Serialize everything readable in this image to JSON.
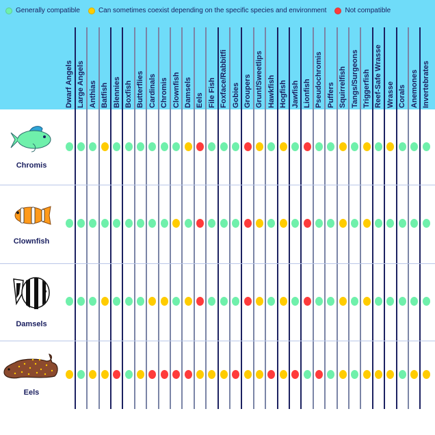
{
  "legend": [
    {
      "label": "Generally compatible",
      "color": "#6ff0ab",
      "key": "G"
    },
    {
      "label": "Can sometimes coexist depending on the specific species and environment",
      "color": "#ffcc00",
      "key": "Y"
    },
    {
      "label": "Not compatible",
      "color": "#ff3b3b",
      "key": "R"
    }
  ],
  "colors": {
    "header_bg": "#6fdcf9",
    "text": "#1b2060",
    "line": "#1b2060",
    "G": "#6ff0ab",
    "Y": "#ffcc00",
    "R": "#ff3b3b"
  },
  "columns": [
    "Dwarf Angels",
    "Large Angels",
    "Anthias",
    "Batfish",
    "Blennies",
    "Boxfish",
    "Butterflies",
    "Cardinals",
    "Chromis",
    "Clownfish",
    "Damsels",
    "Eels",
    "File Fish",
    "Foxface/Rabbitfi",
    "Gobies",
    "Groupers",
    "Grunt/Sweetlips",
    "Hawkfish",
    "Hogfish",
    "Jawfish",
    "Lionfish",
    "Pseudochromis",
    "Puffers",
    "Squirrelfish",
    "Tangs/Surgeons",
    "Triggerfish",
    "Reef-Safe Wrasse",
    "Wrasse",
    "Corals",
    "Anemones",
    "Invertebrates"
  ],
  "rows": [
    {
      "label": "Chromis",
      "icon": "chromis-fish-icon",
      "values": [
        "G",
        "G",
        "G",
        "Y",
        "G",
        "G",
        "G",
        "G",
        "G",
        "G",
        "Y",
        "R",
        "G",
        "G",
        "G",
        "R",
        "Y",
        "G",
        "Y",
        "G",
        "R",
        "G",
        "G",
        "Y",
        "G",
        "Y",
        "G",
        "Y",
        "G",
        "G",
        "G"
      ]
    },
    {
      "label": "Clownfish",
      "icon": "clownfish-icon",
      "values": [
        "G",
        "G",
        "G",
        "G",
        "G",
        "G",
        "G",
        "G",
        "G",
        "Y",
        "G",
        "R",
        "G",
        "G",
        "G",
        "R",
        "Y",
        "G",
        "Y",
        "G",
        "R",
        "G",
        "G",
        "Y",
        "G",
        "Y",
        "G",
        "G",
        "G",
        "G",
        "G"
      ]
    },
    {
      "label": "Damsels",
      "icon": "damselfish-icon",
      "values": [
        "G",
        "G",
        "G",
        "Y",
        "G",
        "G",
        "G",
        "Y",
        "Y",
        "G",
        "Y",
        "R",
        "G",
        "G",
        "G",
        "R",
        "Y",
        "G",
        "Y",
        "G",
        "R",
        "G",
        "G",
        "Y",
        "G",
        "Y",
        "G",
        "G",
        "G",
        "G",
        "G"
      ]
    },
    {
      "label": "Eels",
      "icon": "eel-icon",
      "values": [
        "Y",
        "G",
        "Y",
        "Y",
        "R",
        "G",
        "Y",
        "R",
        "R",
        "R",
        "R",
        "Y",
        "Y",
        "Y",
        "R",
        "Y",
        "Y",
        "R",
        "Y",
        "R",
        "G",
        "R",
        "G",
        "Y",
        "G",
        "Y",
        "Y",
        "Y",
        "G",
        "Y",
        "Y"
      ]
    }
  ],
  "chart_data": {
    "type": "table",
    "title": "Fish compatibility chart",
    "legend": {
      "G": "Generally compatible",
      "Y": "Can sometimes coexist depending on the specific species and environment",
      "R": "Not compatible"
    },
    "columns": [
      "Dwarf Angels",
      "Large Angels",
      "Anthias",
      "Batfish",
      "Blennies",
      "Boxfish",
      "Butterflies",
      "Cardinals",
      "Chromis",
      "Clownfish",
      "Damsels",
      "Eels",
      "File Fish",
      "Foxface/Rabbitfi",
      "Gobies",
      "Groupers",
      "Grunt/Sweetlips",
      "Hawkfish",
      "Hogfish",
      "Jawfish",
      "Lionfish",
      "Pseudochromis",
      "Puffers",
      "Squirrelfish",
      "Tangs/Surgeons",
      "Triggerfish",
      "Reef-Safe Wrasse",
      "Wrasse",
      "Corals",
      "Anemones",
      "Invertebrates"
    ],
    "rows": {
      "Chromis": [
        "G",
        "G",
        "G",
        "Y",
        "G",
        "G",
        "G",
        "G",
        "G",
        "G",
        "Y",
        "R",
        "G",
        "G",
        "G",
        "R",
        "Y",
        "G",
        "Y",
        "G",
        "R",
        "G",
        "G",
        "Y",
        "G",
        "Y",
        "G",
        "Y",
        "G",
        "G",
        "G"
      ],
      "Clownfish": [
        "G",
        "G",
        "G",
        "G",
        "G",
        "G",
        "G",
        "G",
        "G",
        "Y",
        "G",
        "R",
        "G",
        "G",
        "G",
        "R",
        "Y",
        "G",
        "Y",
        "G",
        "R",
        "G",
        "G",
        "Y",
        "G",
        "Y",
        "G",
        "G",
        "G",
        "G",
        "G"
      ],
      "Damsels": [
        "G",
        "G",
        "G",
        "Y",
        "G",
        "G",
        "G",
        "Y",
        "Y",
        "G",
        "Y",
        "R",
        "G",
        "G",
        "G",
        "R",
        "Y",
        "G",
        "Y",
        "G",
        "R",
        "G",
        "G",
        "Y",
        "G",
        "Y",
        "G",
        "G",
        "G",
        "G",
        "G"
      ],
      "Eels": [
        "Y",
        "G",
        "Y",
        "Y",
        "R",
        "G",
        "Y",
        "R",
        "R",
        "R",
        "R",
        "Y",
        "Y",
        "Y",
        "R",
        "Y",
        "Y",
        "R",
        "Y",
        "R",
        "G",
        "R",
        "G",
        "Y",
        "G",
        "Y",
        "Y",
        "Y",
        "G",
        "Y",
        "Y"
      ]
    }
  }
}
